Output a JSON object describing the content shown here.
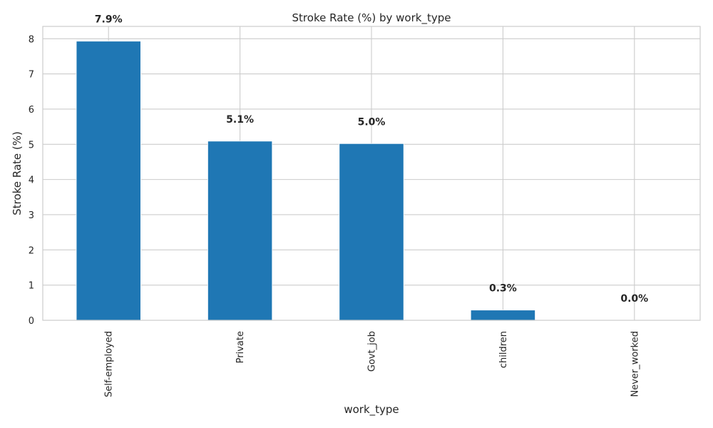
{
  "chart_data": {
    "type": "bar",
    "title": "Stroke Rate (%) by work_type",
    "xlabel": "work_type",
    "ylabel": "Stroke Rate (%)",
    "categories": [
      "Self-employed",
      "Private",
      "Govt_job",
      "children",
      "Never_worked"
    ],
    "values": [
      7.93,
      5.09,
      5.02,
      0.29,
      0.0
    ],
    "data_labels": [
      "7.9%",
      "5.1%",
      "5.0%",
      "0.3%",
      "0.0%"
    ],
    "yticks": [
      "0",
      "1",
      "2",
      "3",
      "4",
      "5",
      "6",
      "7",
      "8"
    ],
    "ylim": [
      0,
      8.35
    ],
    "grid": true,
    "legend": "none",
    "bar_color": "#1f77b4",
    "grid_color": "#cccccc",
    "frame_color": "#cccccc"
  }
}
